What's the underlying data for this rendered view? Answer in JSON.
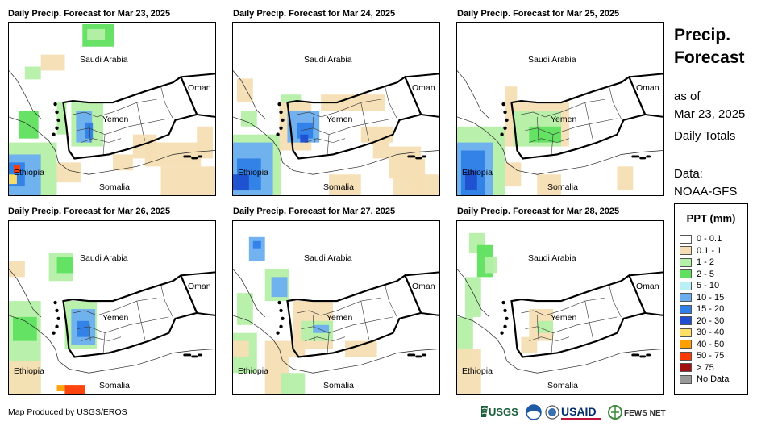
{
  "panels": [
    {
      "title": "Daily Precip. Forecast for Mar 23, 2025"
    },
    {
      "title": "Daily Precip. Forecast for Mar 24, 2025"
    },
    {
      "title": "Daily Precip. Forecast for Mar 25, 2025"
    },
    {
      "title": "Daily Precip. Forecast for Mar 26, 2025"
    },
    {
      "title": "Daily Precip. Forecast for Mar 27, 2025"
    },
    {
      "title": "Daily Precip. Forecast for Mar 28, 2025"
    }
  ],
  "map_labels": {
    "saudi_arabia": "Saudi Arabia",
    "oman": "Oman",
    "yemen": "Yemen",
    "ethiopia": "Ethiopia",
    "somalia": "Somalia"
  },
  "sidebar": {
    "title_line1": "Precip.",
    "title_line2": "Forecast",
    "as_of": "as of",
    "date": "Mar 23, 2025",
    "totals": "Daily Totals",
    "data_label": "Data:",
    "data_source": "NOAA-GFS"
  },
  "legend": {
    "title": "PPT (mm)",
    "items": [
      {
        "label": "0 - 0.1",
        "color": "#ffffff"
      },
      {
        "label": "0.1 - 1",
        "color": "#f5deb3"
      },
      {
        "label": "1 - 2",
        "color": "#b5f0a8"
      },
      {
        "label": "2 - 5",
        "color": "#5fe05f"
      },
      {
        "label": "5 - 10",
        "color": "#b8f0f5"
      },
      {
        "label": "10 - 15",
        "color": "#6aaef0"
      },
      {
        "label": "15 - 20",
        "color": "#2f7fe8"
      },
      {
        "label": "20 - 30",
        "color": "#1f4fd0"
      },
      {
        "label": "30 - 40",
        "color": "#ffe066"
      },
      {
        "label": "40 - 50",
        "color": "#ff9f00"
      },
      {
        "label": "50 - 75",
        "color": "#ff3a00"
      },
      {
        "label": "> 75",
        "color": "#a01010"
      },
      {
        "label": "No Data",
        "color": "#999999"
      }
    ]
  },
  "credit": "Map Produced by USGS/EROS",
  "logos": {
    "usgs": "USGS",
    "usaid": "USAID",
    "fewsnet": "FEWS NET"
  }
}
